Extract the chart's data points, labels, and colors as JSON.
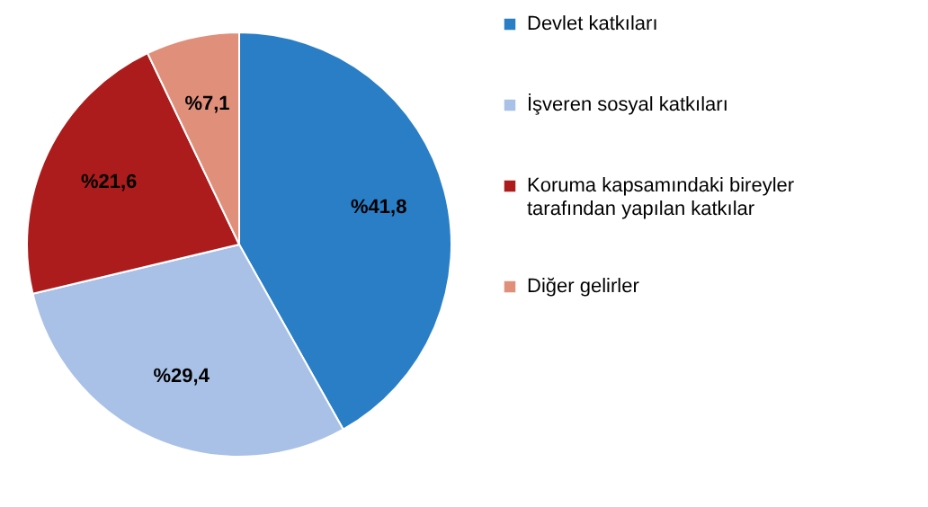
{
  "chart_data": {
    "type": "pie",
    "categories": [
      "Devlet katkıları",
      "İşveren sosyal katkıları",
      "Koruma kapsamındaki bireyler tarafından yapılan katkılar",
      "Diğer gelirler"
    ],
    "values": [
      41.8,
      29.4,
      21.6,
      7.1
    ],
    "value_labels": [
      "%41,8",
      "%29,4",
      "%21,6",
      "%7,1"
    ],
    "colors": [
      "#2a7ec6",
      "#a9c1e6",
      "#ad1c1c",
      "#e0907a"
    ],
    "legend": "right"
  }
}
